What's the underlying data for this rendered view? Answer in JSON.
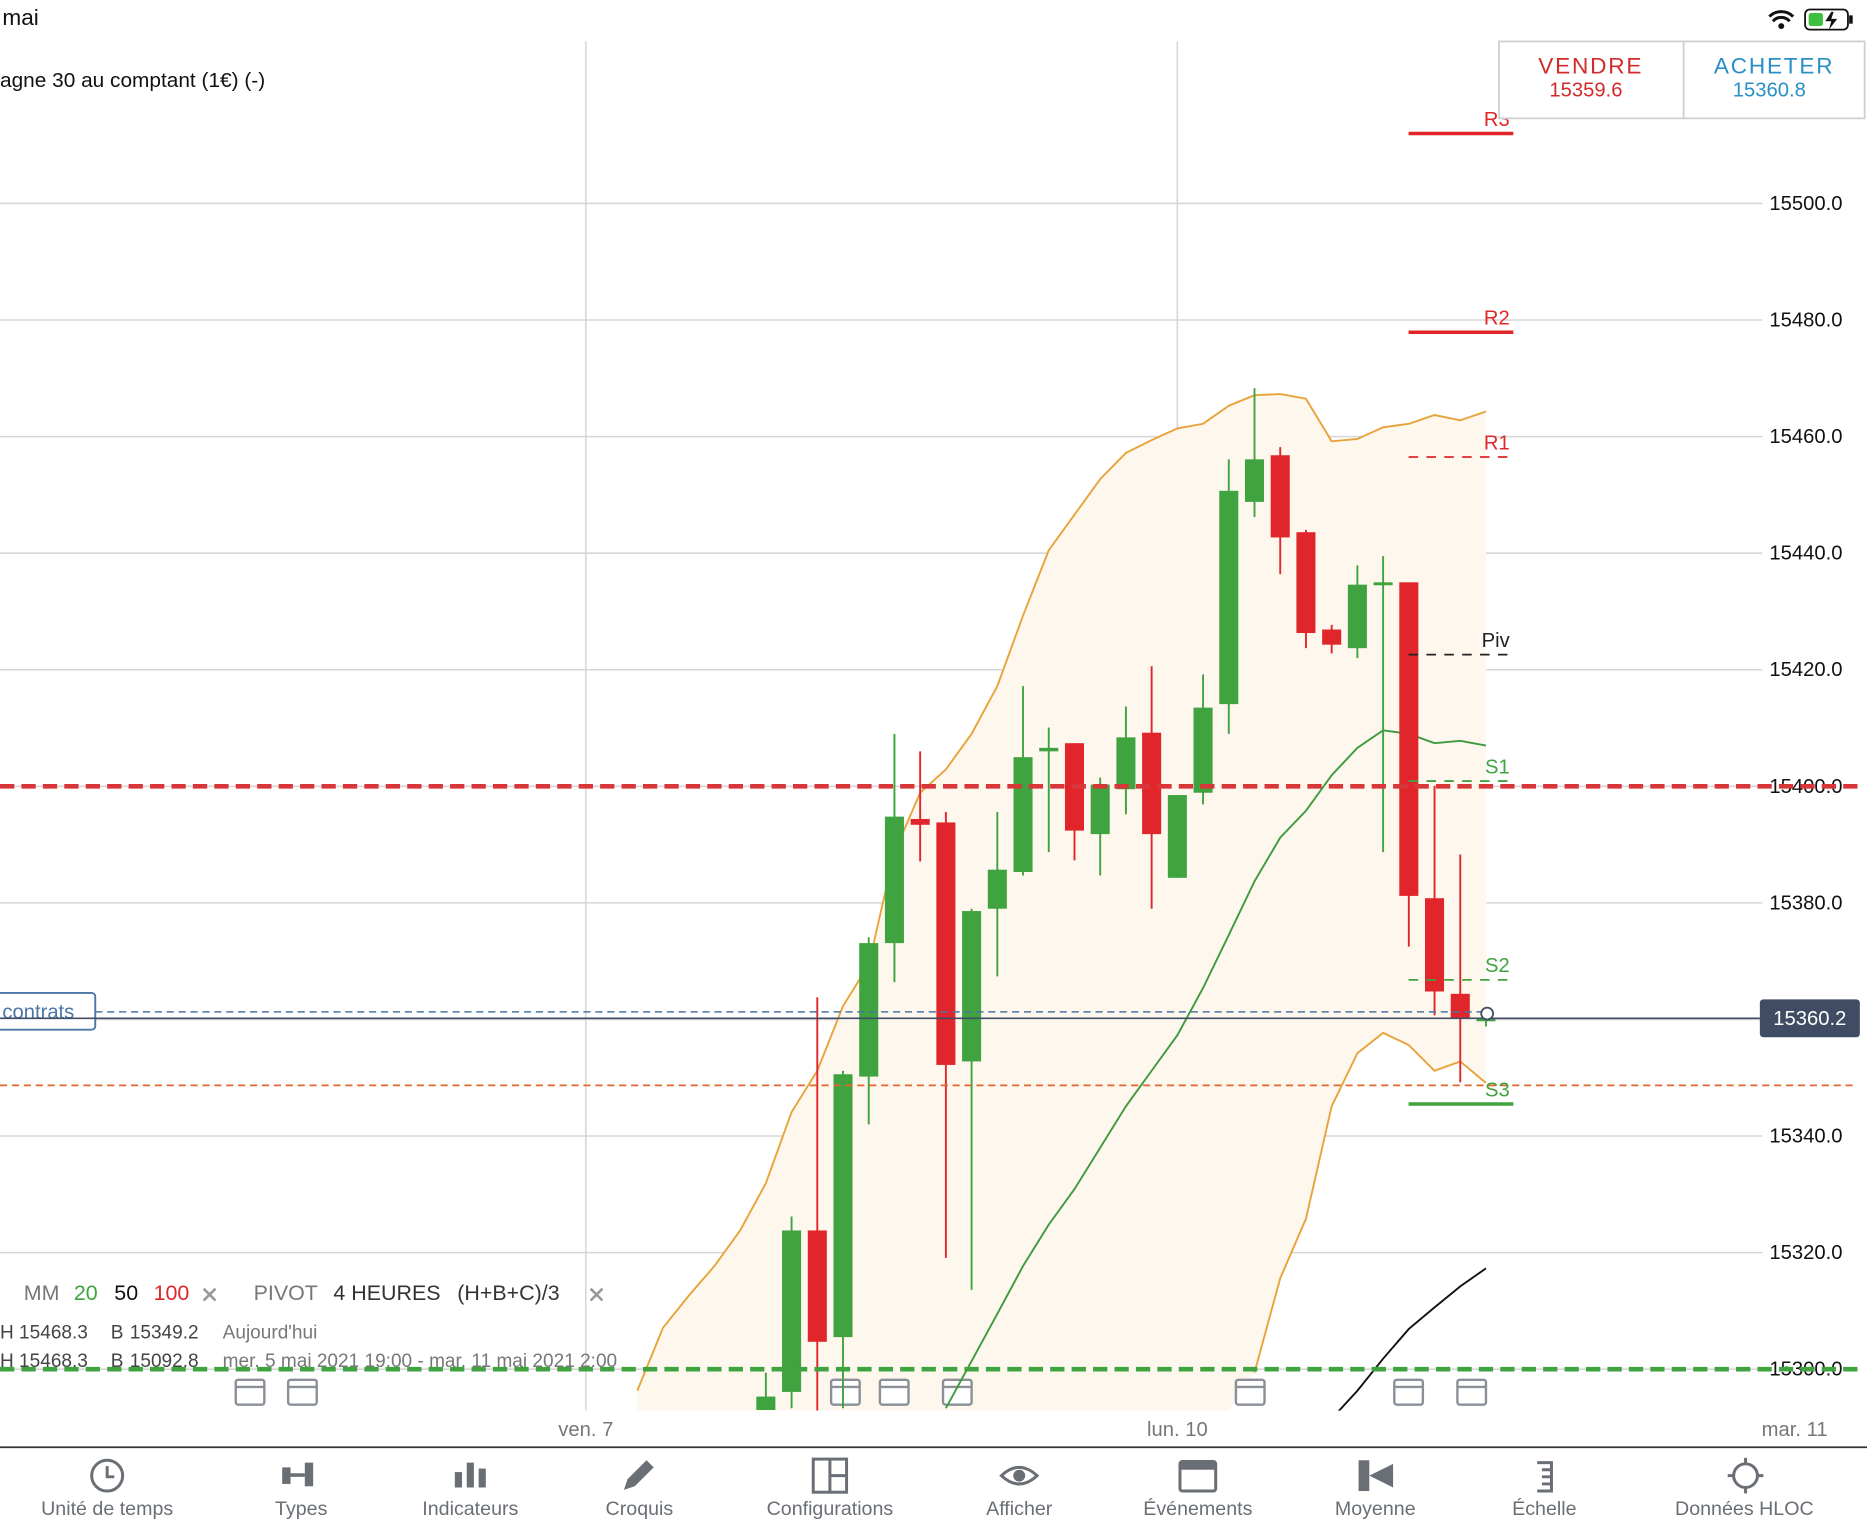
{
  "status": {
    "time": "mai"
  },
  "chart_data": {
    "type": "candlestick",
    "title": "agne 30 au comptant (1€) (-)",
    "categories": [
      "ven. 7",
      null,
      null,
      null,
      null,
      null,
      null,
      null,
      null,
      null,
      null,
      null,
      null,
      null,
      null,
      null,
      null,
      null,
      null,
      null,
      null,
      null,
      null,
      "lun. 10",
      null,
      null,
      null,
      null,
      null,
      null,
      null,
      null,
      null,
      null,
      null,
      null,
      null,
      null,
      null,
      null,
      null,
      null,
      null,
      null,
      null,
      null,
      null,
      "mar. 11"
    ],
    "open": [
      null,
      null,
      null,
      null,
      null,
      null,
      null,
      15293.0,
      15296.1,
      15323.8,
      15305.5,
      15350.2,
      15373.1,
      15394.4,
      15393.8,
      15352.8,
      15379.0,
      15385.3,
      15406.0,
      15407.4,
      15391.8,
      15399.5,
      15409.2,
      15384.3,
      15398.9,
      15414.1,
      15448.8,
      15456.8,
      15443.6,
      15426.9,
      15423.7,
      15434.6,
      15435.0,
      15380.8,
      15364.4,
      15360.0,
      null,
      null,
      null,
      null,
      null,
      null,
      null,
      null,
      null,
      null,
      null,
      null
    ],
    "high": [
      null,
      null,
      null,
      null,
      null,
      null,
      null,
      15299.4,
      15326.2,
      15363.8,
      15351.2,
      15374.1,
      15409.0,
      15406.0,
      15395.6,
      15379.0,
      15395.6,
      15417.2,
      15410.1,
      15407.4,
      15401.5,
      15413.7,
      15420.6,
      15398.5,
      15419.2,
      15456.1,
      15468.3,
      15458.2,
      15444.0,
      15427.7,
      15437.9,
      15439.5,
      15435.0,
      15400.1,
      15388.3,
      15361.5,
      null,
      null,
      null,
      null,
      null,
      null,
      null,
      null,
      null,
      null,
      null,
      null
    ],
    "low": [
      null,
      null,
      null,
      null,
      null,
      null,
      null,
      15293.0,
      15293.3,
      15292.9,
      15293.3,
      15342.0,
      15366.4,
      15387.1,
      15319.1,
      15313.6,
      15367.4,
      15384.7,
      15388.7,
      15387.3,
      15384.7,
      15395.2,
      15379.0,
      15384.3,
      15396.9,
      15409.0,
      15446.2,
      15436.4,
      15423.7,
      15422.8,
      15422.0,
      15388.7,
      15372.5,
      15360.7,
      15349.2,
      15358.8,
      null,
      null,
      null,
      null,
      null,
      null,
      null,
      null,
      null,
      null,
      null,
      null
    ],
    "close": [
      null,
      null,
      null,
      null,
      null,
      null,
      null,
      15295.3,
      15323.8,
      15304.7,
      15350.6,
      15373.1,
      15394.8,
      15393.4,
      15352.2,
      15378.6,
      15385.7,
      15405.0,
      15406.6,
      15392.4,
      15400.3,
      15408.4,
      15391.8,
      15398.5,
      15413.5,
      15450.7,
      15456.1,
      15442.7,
      15426.3,
      15424.3,
      15434.6,
      15435.0,
      15381.2,
      15364.8,
      15360.3,
      15360.2,
      null,
      null,
      null,
      null,
      null,
      null,
      null,
      null,
      null,
      null,
      null,
      null
    ],
    "up_color": "#3fa33f",
    "down_color": "#e0262a",
    "series": [
      {
        "color": "#e8a33a",
        "values": [
          null,
          null,
          15296.3,
          15307.1,
          15312.6,
          15317.7,
          15323.8,
          15331.9,
          15344.1,
          15351.2,
          15362.3,
          15369.4,
          15388.7,
          15398.9,
          15402.9,
          15409.0,
          15417.2,
          15429.3,
          15440.5,
          15446.6,
          15452.7,
          15457.2,
          15459.4,
          15461.4,
          15462.2,
          15465.3,
          15467.1,
          15467.3,
          15466.5,
          15459.2,
          15459.6,
          15461.6,
          15462.2,
          15463.7,
          15462.8,
          15464.3,
          null,
          null,
          null,
          null,
          null,
          null,
          null,
          null,
          null,
          null,
          null,
          null
        ]
      },
      {
        "color": "#e8a33a",
        "values": [
          null,
          null,
          null,
          null,
          null,
          null,
          null,
          null,
          null,
          null,
          null,
          null,
          null,
          null,
          null,
          null,
          null,
          null,
          null,
          null,
          null,
          null,
          null,
          null,
          null,
          null,
          15299.4,
          15315.6,
          15325.8,
          15345.1,
          15354.2,
          15357.7,
          15355.6,
          15351.2,
          15352.8,
          15349.1,
          null,
          null,
          null,
          null,
          null,
          null,
          null,
          null,
          null,
          null,
          null,
          null
        ]
      },
      {
        "color": "#3d9a3d",
        "values": [
          null,
          null,
          null,
          null,
          null,
          null,
          null,
          null,
          null,
          null,
          null,
          null,
          null,
          null,
          15293.3,
          15301.4,
          15309.5,
          15317.7,
          15324.8,
          15330.9,
          15338.0,
          15345.1,
          15351.2,
          15357.3,
          15365.4,
          15374.5,
          15383.7,
          15391.2,
          15395.8,
          15401.9,
          15406.6,
          15409.6,
          15409.0,
          15407.4,
          15407.8,
          15407.0,
          null,
          null,
          null,
          null,
          null,
          null,
          null,
          null,
          null,
          null,
          null,
          null
        ]
      },
      {
        "color": "#111111",
        "values": [
          null,
          null,
          null,
          null,
          null,
          null,
          null,
          null,
          null,
          null,
          null,
          null,
          null,
          null,
          null,
          null,
          null,
          null,
          null,
          null,
          null,
          null,
          null,
          null,
          null,
          null,
          null,
          null,
          null,
          15291.5,
          15296.3,
          15301.8,
          15306.9,
          15310.6,
          15314.2,
          15317.3,
          null,
          null,
          null,
          null,
          null,
          null,
          null,
          null,
          null,
          null,
          null,
          null
        ]
      }
    ],
    "band_fill": "#fdf7ee",
    "ylim": [
      15292.9,
      15527.8
    ],
    "yticks": [
      {
        "value": 15300,
        "label": "15300.0"
      },
      {
        "value": 15320,
        "label": "15320.0"
      },
      {
        "value": 15340,
        "label": "15340.0"
      },
      {
        "value": 15360,
        "label": "15360.0"
      },
      {
        "value": 15380,
        "label": "15380.0"
      },
      {
        "value": 15400,
        "label": "15400.0"
      },
      {
        "value": 15420,
        "label": "15420.0"
      },
      {
        "value": 15440,
        "label": "15440.0"
      },
      {
        "value": 15460,
        "label": "15460.0"
      },
      {
        "value": 15480,
        "label": "15480.0"
      },
      {
        "value": 15500,
        "label": "15500.0"
      }
    ],
    "grid": true,
    "pivots": [
      {
        "label": "R3",
        "value": 15512.0,
        "color": "#e0262a",
        "dashed": false
      },
      {
        "label": "R2",
        "value": 15477.9,
        "color": "#e0262a",
        "dashed": false
      },
      {
        "label": "R1",
        "value": 15456.5,
        "color": "#e0262a",
        "dashed": true
      },
      {
        "label": "Piv",
        "value": 15422.6,
        "color": "#222222",
        "dashed": true
      },
      {
        "label": "S1",
        "value": 15400.9,
        "color": "#3fa33f",
        "dashed": true
      },
      {
        "label": "S2",
        "value": 15366.8,
        "color": "#3fa33f",
        "dashed": true
      },
      {
        "label": "S3",
        "value": 15345.5,
        "color": "#3fa33f",
        "dashed": false
      }
    ],
    "levels": [
      {
        "value": 15400,
        "color": "#d9363a",
        "dashed": true,
        "width": 4
      },
      {
        "value": 15300,
        "color": "#3fa33f",
        "dashed": true,
        "width": 4
      },
      {
        "value": 15348.7,
        "color": "#e2672e",
        "dashed": true,
        "width": 1.5
      }
    ],
    "position": {
      "label": "contrats",
      "value": 15361.3,
      "color": "#4a76a8"
    },
    "current_price": 15360.2,
    "current_color": "#3f4c63"
  },
  "quote": {
    "sell_label": "VENDRE",
    "sell": 15359.6,
    "buy_label": "ACHETER",
    "buy": 15360.8
  },
  "legend": {
    "mm": {
      "label": "MM",
      "periods": [
        {
          "value": 20,
          "color": "#3fa33f"
        },
        {
          "value": 50,
          "color": "#111111"
        },
        {
          "value": 100,
          "color": "#e0262a"
        }
      ]
    },
    "pivot": {
      "label": "PIVOT",
      "period": "4 HEURES",
      "formula": "(H+B+C)/3"
    }
  },
  "stats": [
    {
      "h_label": "H",
      "h": 15468.3,
      "b_label": "B",
      "b": 15349.2,
      "period": "Aujourd'hui"
    },
    {
      "h_label": "H",
      "h": 15468.3,
      "b_label": "B",
      "b": 15092.8,
      "period": "mer. 5 mai 2021 19:00 - mar. 11 mai 2021 2:00"
    }
  ],
  "toolbar": [
    "Unité de temps",
    "Types",
    "Indicateurs",
    "Croquis",
    "Configurations",
    "Afficher",
    "Événements",
    "Moyenne",
    "Échelle",
    "Données HLOC"
  ]
}
